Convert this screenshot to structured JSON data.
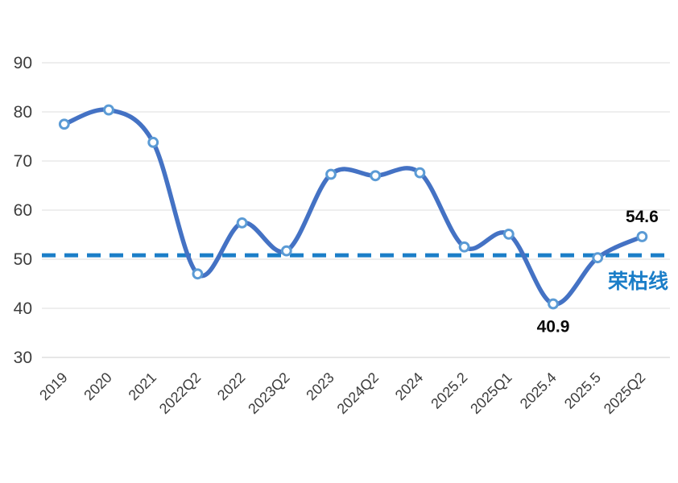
{
  "chart_data": {
    "type": "line",
    "title": "",
    "xlabel": "",
    "ylabel": "",
    "categories": [
      "2019",
      "2020",
      "2021",
      "2022Q2",
      "2022",
      "2023Q2",
      "2023",
      "2024Q2",
      "2024",
      "2025.2",
      "2025Q1",
      "2025.4",
      "2025.5",
      "2025Q2"
    ],
    "series": [
      {
        "values": [
          77.5,
          80.4,
          73.8,
          47.0,
          57.4,
          51.7,
          67.3,
          67.0,
          67.6,
          52.5,
          55.1,
          40.9,
          50.3,
          54.6
        ],
        "line_style": "smooth",
        "marker": "open-circle"
      }
    ],
    "y_ticks": [
      90,
      80,
      70,
      60,
      50,
      40,
      30
    ],
    "ylim": [
      30,
      90
    ],
    "grid": "horizontal",
    "legend_position": "none",
    "x_tick_rotation_deg": 45,
    "threshold_line": {
      "label": "荣枯线",
      "value": 50.8,
      "style": "dashed"
    },
    "annotations": [
      {
        "text": "54.6",
        "point_index": 13,
        "position": "above"
      },
      {
        "text": "40.9",
        "point_index": 11,
        "position": "below"
      }
    ],
    "colors": {
      "line": "#4472C4",
      "marker_fill": "#FFFFFF",
      "marker_stroke": "#5B9BD5",
      "gridline": "#E4E4E4",
      "bottom_gridline": "#D6D6D6",
      "axis_text": "#3D3D3D",
      "annotation_text": "#0A0A0A",
      "threshold": "#1B7EC8"
    }
  }
}
